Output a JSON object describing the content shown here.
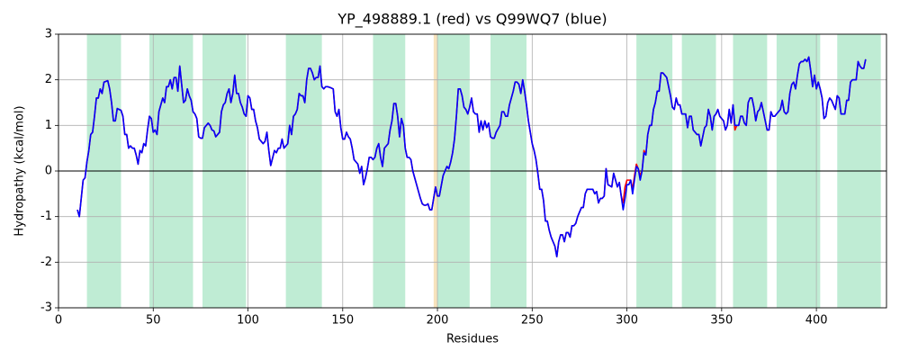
{
  "chart_data": {
    "type": "line",
    "title": "YP_498889.1 (red) vs Q99WQ7 (blue)",
    "x_label": "Residues",
    "y_label": "Hydropathy (kcal/mol)",
    "xlim": [
      0,
      437
    ],
    "ylim": [
      -3,
      3
    ],
    "xticks": [
      0,
      50,
      100,
      150,
      200,
      250,
      300,
      350,
      400
    ],
    "yticks": [
      -3,
      -2,
      -1,
      0,
      1,
      2,
      3
    ],
    "grid": true,
    "hline": 0,
    "regions": [
      [
        15,
        33
      ],
      [
        48,
        71
      ],
      [
        76,
        99
      ],
      [
        120,
        139
      ],
      [
        166,
        183
      ],
      [
        199,
        217
      ],
      [
        228,
        247
      ],
      [
        305,
        324
      ],
      [
        329,
        347
      ],
      [
        356,
        374
      ],
      [
        379,
        402
      ],
      [
        411,
        434
      ]
    ],
    "region_color": "#bfecd4",
    "highlight": [
      198,
      200
    ],
    "highlight_color": "#f7e3bd",
    "x": [
      10,
      11,
      12,
      13,
      14,
      15,
      16,
      17,
      18,
      19,
      20,
      21,
      22,
      23,
      24,
      26,
      27,
      28,
      29,
      30,
      31,
      32,
      33,
      34,
      35,
      36,
      37,
      38,
      39,
      40,
      41,
      42,
      43,
      44,
      45,
      46,
      47,
      48,
      49,
      50,
      51,
      52,
      53,
      55,
      56,
      57,
      58,
      59,
      60,
      61,
      62,
      63,
      64,
      65,
      66,
      67,
      68,
      69,
      70,
      71,
      72,
      73,
      74,
      75,
      76,
      77,
      78,
      79,
      80,
      81,
      82,
      83,
      85,
      86,
      87,
      88,
      89,
      90,
      91,
      92,
      93,
      94,
      95,
      96,
      97,
      98,
      99,
      100,
      101,
      102,
      103,
      104,
      105,
      106,
      107,
      108,
      109,
      110,
      111,
      112,
      114,
      115,
      116,
      117,
      118,
      119,
      120,
      121,
      122,
      123,
      124,
      125,
      126,
      127,
      128,
      129,
      130,
      131,
      132,
      133,
      134,
      135,
      136,
      137,
      138,
      139,
      140,
      141,
      142,
      144,
      145,
      146,
      147,
      148,
      149,
      150,
      151,
      152,
      153,
      154,
      155,
      156,
      157,
      158,
      159,
      160,
      161,
      162,
      163,
      164,
      165,
      166,
      167,
      168,
      169,
      170,
      171,
      172,
      174,
      175,
      176,
      177,
      178,
      179,
      180,
      181,
      182,
      183,
      184,
      185,
      186,
      187,
      188,
      189,
      190,
      191,
      192,
      193,
      194,
      195,
      196,
      197,
      198,
      199,
      200,
      201,
      203,
      204,
      205,
      206,
      207,
      208,
      209,
      210,
      211,
      212,
      213,
      214,
      215,
      216,
      217,
      218,
      219,
      220,
      221,
      222,
      223,
      224,
      225,
      226,
      227,
      228,
      229,
      230,
      231,
      233,
      234,
      235,
      236,
      237,
      238,
      239,
      240,
      241,
      242,
      243,
      244,
      245,
      246,
      247,
      248,
      249,
      250,
      251,
      252,
      253,
      254,
      255,
      256,
      257,
      258,
      259,
      260,
      262,
      263,
      264,
      265,
      266,
      267,
      268,
      269,
      270,
      271,
      272,
      273,
      274,
      275,
      276,
      277,
      278,
      279,
      280,
      281,
      282,
      283,
      284,
      285,
      286,
      287,
      288,
      289,
      290,
      292,
      293,
      294,
      295,
      296,
      297,
      298,
      299,
      300,
      301,
      302,
      303,
      304,
      305,
      306,
      307,
      308,
      309,
      310,
      311,
      312,
      313,
      314,
      315,
      316,
      317,
      318,
      319,
      321,
      322,
      323,
      324,
      325,
      326,
      327,
      328,
      329,
      330,
      331,
      332,
      333,
      334,
      335,
      336,
      337,
      338,
      339,
      340,
      341,
      342,
      343,
      344,
      345,
      346,
      347,
      348,
      349,
      351,
      352,
      353,
      354,
      355,
      356,
      357,
      358,
      359,
      360,
      361,
      362,
      363,
      364,
      365,
      366,
      367,
      368,
      369,
      370,
      371,
      372,
      373,
      374,
      375,
      376,
      377,
      378,
      379,
      381,
      382,
      383,
      384,
      385,
      386,
      387,
      388,
      389,
      390,
      391,
      392,
      393,
      394,
      395,
      396,
      397,
      398,
      399,
      400,
      401,
      402,
      403,
      404,
      405,
      406,
      407,
      408,
      410,
      411,
      412,
      413,
      414,
      415,
      416,
      417,
      418,
      419,
      420,
      421,
      422,
      423,
      424,
      425,
      426
    ],
    "series": [
      {
        "name": "YP_498889.1",
        "color": "#ff0000",
        "values": [
          -0.85,
          -1.0,
          -0.6,
          -0.2,
          -0.15,
          0.2,
          0.45,
          0.8,
          0.85,
          1.2,
          1.6,
          1.6,
          1.8,
          1.7,
          1.95,
          1.98,
          1.8,
          1.5,
          1.1,
          1.1,
          1.37,
          1.35,
          1.33,
          1.2,
          0.8,
          0.8,
          0.5,
          0.55,
          0.5,
          0.5,
          0.35,
          0.15,
          0.45,
          0.4,
          0.6,
          0.55,
          0.9,
          1.2,
          1.15,
          0.85,
          0.9,
          0.8,
          1.3,
          1.6,
          1.5,
          1.85,
          1.85,
          2.0,
          1.8,
          2.05,
          2.05,
          1.75,
          2.3,
          1.9,
          1.5,
          1.55,
          1.8,
          1.65,
          1.55,
          1.3,
          1.25,
          1.15,
          0.75,
          0.72,
          0.72,
          0.95,
          1.0,
          1.05,
          1.0,
          0.9,
          0.88,
          0.75,
          0.85,
          1.3,
          1.45,
          1.5,
          1.7,
          1.8,
          1.5,
          1.7,
          2.1,
          1.7,
          1.7,
          1.5,
          1.4,
          1.25,
          1.2,
          1.65,
          1.6,
          1.35,
          1.35,
          1.1,
          0.95,
          0.7,
          0.65,
          0.6,
          0.65,
          0.85,
          0.45,
          0.12,
          0.45,
          0.4,
          0.5,
          0.5,
          0.7,
          0.5,
          0.55,
          0.6,
          1.0,
          0.8,
          1.2,
          1.25,
          1.35,
          1.7,
          1.65,
          1.65,
          1.5,
          2.0,
          2.25,
          2.25,
          2.15,
          2.0,
          2.05,
          2.05,
          2.3,
          1.85,
          1.8,
          1.85,
          1.85,
          1.82,
          1.8,
          1.3,
          1.2,
          1.35,
          0.95,
          0.7,
          0.7,
          0.85,
          0.75,
          0.7,
          0.5,
          0.25,
          0.2,
          0.15,
          -0.05,
          0.1,
          -0.3,
          -0.15,
          0.05,
          0.3,
          0.3,
          0.25,
          0.3,
          0.5,
          0.6,
          0.3,
          0.1,
          0.5,
          0.6,
          0.9,
          1.1,
          1.48,
          1.48,
          1.2,
          0.75,
          1.15,
          1.0,
          0.5,
          0.3,
          0.3,
          0.25,
          0.0,
          -0.15,
          -0.3,
          -0.45,
          -0.6,
          -0.72,
          -0.75,
          -0.75,
          -0.72,
          -0.85,
          -0.85,
          -0.6,
          -0.35,
          -0.55,
          -0.55,
          -0.1,
          0.0,
          0.1,
          0.05,
          0.2,
          0.4,
          0.7,
          1.2,
          1.8,
          1.8,
          1.65,
          1.4,
          1.35,
          1.25,
          1.4,
          1.6,
          1.3,
          1.25,
          1.25,
          0.85,
          1.1,
          0.9,
          1.1,
          0.95,
          1.05,
          0.75,
          0.72,
          0.72,
          0.85,
          1.0,
          1.3,
          1.3,
          1.2,
          1.2,
          1.45,
          1.6,
          1.75,
          1.95,
          1.95,
          1.9,
          1.7,
          2.0,
          1.75,
          1.45,
          1.1,
          0.85,
          0.6,
          0.45,
          0.25,
          -0.05,
          -0.4,
          -0.4,
          -0.65,
          -1.1,
          -1.1,
          -1.3,
          -1.45,
          -1.65,
          -1.88,
          -1.55,
          -1.4,
          -1.4,
          -1.55,
          -1.35,
          -1.35,
          -1.45,
          -1.2,
          -1.2,
          -1.15,
          -1.0,
          -0.9,
          -0.8,
          -0.8,
          -0.5,
          -0.4,
          -0.4,
          -0.4,
          -0.4,
          -0.5,
          -0.45,
          -0.7,
          -0.6,
          -0.6,
          -0.55,
          0.05,
          -0.3,
          -0.35,
          -0.05,
          -0.2,
          -0.35,
          -0.25,
          -0.55,
          -0.7,
          -0.35,
          -0.2,
          -0.2,
          -0.2,
          -0.4,
          -0.1,
          0.15,
          0.05,
          -0.1,
          0.0,
          0.45,
          0.35,
          0.8,
          1.0,
          1.0,
          1.35,
          1.5,
          1.75,
          1.75,
          2.15,
          2.15,
          2.05,
          1.85,
          1.65,
          1.4,
          1.35,
          1.6,
          1.45,
          1.45,
          1.25,
          1.25,
          1.25,
          0.95,
          1.2,
          1.2,
          0.9,
          0.85,
          0.8,
          0.8,
          0.55,
          0.75,
          0.95,
          1.0,
          1.35,
          1.2,
          0.9,
          1.2,
          1.25,
          1.35,
          1.2,
          1.1,
          0.9,
          1.0,
          1.35,
          1.05,
          1.45,
          0.9,
          1.0,
          1.0,
          1.2,
          1.2,
          1.05,
          1.0,
          1.5,
          1.6,
          1.6,
          1.4,
          1.1,
          1.3,
          1.35,
          1.5,
          1.3,
          1.1,
          0.9,
          0.9,
          1.3,
          1.2,
          1.2,
          1.25,
          1.35,
          1.55,
          1.3,
          1.25,
          1.3,
          1.7,
          1.9,
          1.95,
          1.8,
          2.1,
          2.35,
          2.4,
          2.4,
          2.45,
          2.4,
          2.5,
          2.2,
          1.85,
          2.1,
          1.8,
          1.95,
          1.8,
          1.6,
          1.15,
          1.2,
          1.5,
          1.6,
          1.55,
          1.35,
          1.65,
          1.6,
          1.25,
          1.25,
          1.25,
          1.55,
          1.55,
          1.95,
          2.0,
          2.0,
          2.0,
          2.4,
          2.3,
          2.25,
          2.25,
          2.45
        ]
      },
      {
        "name": "Q99WQ7",
        "color": "#0000ff",
        "values": [
          -0.85,
          -1.0,
          -0.6,
          -0.2,
          -0.15,
          0.2,
          0.45,
          0.8,
          0.85,
          1.2,
          1.6,
          1.6,
          1.8,
          1.7,
          1.95,
          1.98,
          1.8,
          1.5,
          1.1,
          1.1,
          1.37,
          1.35,
          1.33,
          1.2,
          0.8,
          0.8,
          0.5,
          0.55,
          0.5,
          0.5,
          0.35,
          0.15,
          0.45,
          0.4,
          0.6,
          0.55,
          0.9,
          1.2,
          1.15,
          0.85,
          0.9,
          0.8,
          1.3,
          1.6,
          1.5,
          1.85,
          1.85,
          2.0,
          1.8,
          2.05,
          2.05,
          1.75,
          2.3,
          1.9,
          1.5,
          1.55,
          1.8,
          1.65,
          1.55,
          1.3,
          1.25,
          1.15,
          0.75,
          0.72,
          0.72,
          0.95,
          1.0,
          1.05,
          1.0,
          0.9,
          0.88,
          0.75,
          0.85,
          1.3,
          1.45,
          1.5,
          1.7,
          1.8,
          1.5,
          1.7,
          2.1,
          1.7,
          1.7,
          1.5,
          1.4,
          1.25,
          1.2,
          1.65,
          1.6,
          1.35,
          1.35,
          1.1,
          0.95,
          0.7,
          0.65,
          0.6,
          0.65,
          0.85,
          0.45,
          0.12,
          0.45,
          0.4,
          0.5,
          0.5,
          0.7,
          0.5,
          0.55,
          0.6,
          1.0,
          0.8,
          1.2,
          1.25,
          1.35,
          1.7,
          1.65,
          1.65,
          1.5,
          2.0,
          2.25,
          2.25,
          2.15,
          2.0,
          2.05,
          2.05,
          2.3,
          1.85,
          1.8,
          1.85,
          1.85,
          1.82,
          1.8,
          1.3,
          1.2,
          1.35,
          0.95,
          0.7,
          0.7,
          0.85,
          0.75,
          0.7,
          0.5,
          0.25,
          0.2,
          0.15,
          -0.05,
          0.1,
          -0.3,
          -0.15,
          0.05,
          0.3,
          0.3,
          0.25,
          0.3,
          0.5,
          0.6,
          0.3,
          0.1,
          0.5,
          0.6,
          0.9,
          1.1,
          1.48,
          1.48,
          1.2,
          0.75,
          1.15,
          1.0,
          0.5,
          0.3,
          0.3,
          0.25,
          0.0,
          -0.15,
          -0.3,
          -0.45,
          -0.6,
          -0.72,
          -0.75,
          -0.75,
          -0.72,
          -0.85,
          -0.85,
          -0.6,
          -0.35,
          -0.55,
          -0.55,
          -0.1,
          0.0,
          0.1,
          0.05,
          0.2,
          0.4,
          0.7,
          1.2,
          1.8,
          1.8,
          1.65,
          1.4,
          1.35,
          1.25,
          1.4,
          1.6,
          1.3,
          1.25,
          1.25,
          0.85,
          1.1,
          0.9,
          1.1,
          0.95,
          1.05,
          0.75,
          0.72,
          0.72,
          0.85,
          1.0,
          1.3,
          1.3,
          1.2,
          1.2,
          1.45,
          1.6,
          1.75,
          1.95,
          1.95,
          1.9,
          1.7,
          2.0,
          1.75,
          1.45,
          1.1,
          0.85,
          0.6,
          0.45,
          0.25,
          -0.05,
          -0.4,
          -0.4,
          -0.65,
          -1.1,
          -1.1,
          -1.3,
          -1.45,
          -1.65,
          -1.88,
          -1.55,
          -1.4,
          -1.4,
          -1.55,
          -1.35,
          -1.35,
          -1.45,
          -1.2,
          -1.2,
          -1.15,
          -1.0,
          -0.9,
          -0.8,
          -0.8,
          -0.5,
          -0.4,
          -0.4,
          -0.4,
          -0.4,
          -0.5,
          -0.45,
          -0.7,
          -0.6,
          -0.6,
          -0.55,
          0.05,
          -0.3,
          -0.35,
          -0.05,
          -0.2,
          -0.35,
          -0.25,
          -0.55,
          -0.85,
          -0.6,
          -0.3,
          -0.3,
          -0.2,
          -0.5,
          -0.2,
          0.1,
          0.05,
          -0.2,
          0.0,
          0.4,
          0.35,
          0.8,
          1.0,
          1.0,
          1.35,
          1.5,
          1.75,
          1.75,
          2.15,
          2.15,
          2.05,
          1.85,
          1.65,
          1.4,
          1.35,
          1.6,
          1.45,
          1.45,
          1.25,
          1.25,
          1.25,
          0.95,
          1.2,
          1.2,
          0.9,
          0.85,
          0.8,
          0.8,
          0.55,
          0.75,
          0.95,
          1.0,
          1.35,
          1.2,
          0.9,
          1.2,
          1.25,
          1.35,
          1.2,
          1.1,
          0.9,
          1.0,
          1.35,
          1.05,
          1.45,
          1.0,
          1.0,
          1.0,
          1.2,
          1.2,
          1.05,
          1.0,
          1.5,
          1.6,
          1.6,
          1.4,
          1.1,
          1.3,
          1.35,
          1.5,
          1.3,
          1.1,
          0.9,
          0.9,
          1.3,
          1.2,
          1.2,
          1.25,
          1.35,
          1.55,
          1.3,
          1.25,
          1.3,
          1.7,
          1.9,
          1.95,
          1.8,
          2.1,
          2.35,
          2.4,
          2.4,
          2.45,
          2.4,
          2.5,
          2.2,
          1.85,
          2.1,
          1.8,
          1.95,
          1.8,
          1.6,
          1.15,
          1.2,
          1.5,
          1.6,
          1.55,
          1.35,
          1.65,
          1.6,
          1.25,
          1.25,
          1.25,
          1.55,
          1.55,
          1.95,
          2.0,
          2.0,
          2.0,
          2.4,
          2.3,
          2.25,
          2.25,
          2.45
        ]
      }
    ]
  }
}
